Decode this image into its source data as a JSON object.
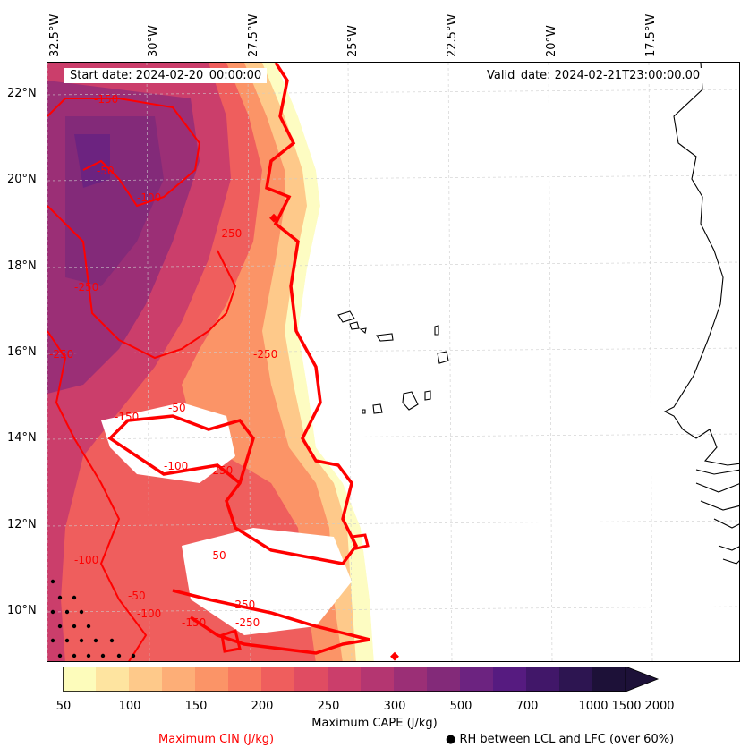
{
  "header": {
    "start_date": "Start date: 2024-02-20_00:00:00",
    "valid_date": "Valid_date: 2024-02-21T23:00:00.00"
  },
  "map": {
    "lon_labels": [
      "32.5°W",
      "30°W",
      "27.5°W",
      "25°W",
      "22.5°W",
      "20°W",
      "17.5°W"
    ],
    "lat_labels": [
      "22°N",
      "20°N",
      "18°N",
      "16°N",
      "14°N",
      "12°N",
      "10°N"
    ],
    "cin_contour_labels": [
      "-150",
      "-50",
      "-100",
      "-250",
      "-250",
      "-250",
      "-250",
      "-50",
      "-150",
      "-100",
      "-250",
      "-250",
      "-50",
      "-100",
      "-50",
      "-150",
      "-250",
      "-100"
    ]
  },
  "colorbar": {
    "ticks": [
      "50",
      "100",
      "150",
      "200",
      "250",
      "300",
      "500",
      "700",
      "1000",
      "1500",
      "2000"
    ],
    "label": "Maximum CAPE (J/kg)",
    "colors": [
      "#fdfcbb",
      "#fee4a0",
      "#fec98a",
      "#fdae77",
      "#fb9467",
      "#f8795e",
      "#ef5e5d",
      "#e04c62",
      "#cb3e6b",
      "#b43671",
      "#9b2f76",
      "#832a79",
      "#6c2380",
      "#561b80",
      "#411769",
      "#2d1551",
      "#1d1138"
    ]
  },
  "legend": {
    "cin": "Maximum CIN (J/kg)",
    "rh": "● RH between LCL and LFC (over 60%)",
    "cin_color": "#ff0000"
  }
}
